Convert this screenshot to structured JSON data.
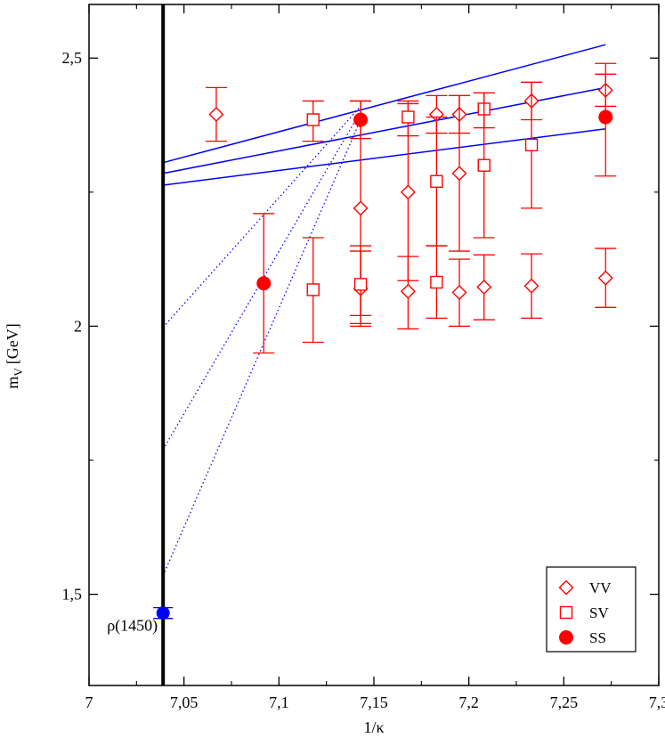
{
  "chart_data": {
    "type": "scatter",
    "xlabel": "1/κ",
    "ylabel": "m_V [GeV]",
    "ylabel_main": "m",
    "ylabel_sub": "V",
    "ylabel_unit": "[GeV]",
    "xlim": [
      7.0,
      7.3
    ],
    "ylim": [
      1.33,
      2.6
    ],
    "x_ticks": [
      7.0,
      7.05,
      7.1,
      7.15,
      7.2,
      7.25,
      7.3
    ],
    "x_tick_labels": [
      "7",
      "7,05",
      "7,1",
      "7,15",
      "7,2",
      "7,25",
      "7,3"
    ],
    "y_ticks": [
      1.5,
      2.0,
      2.5
    ],
    "y_tick_labels": [
      "1,5",
      "2",
      "2,5"
    ],
    "grid": false,
    "legend_position": "bottom-right",
    "chiral_line_x": 7.039,
    "series": [
      {
        "name": "VV",
        "marker": "diamond",
        "color": "#ff0000",
        "points": [
          {
            "x": 7.067,
            "y": 2.395,
            "lo": 2.345,
            "hi": 2.445
          },
          {
            "x": 7.143,
            "y": 2.22,
            "lo": 2.02,
            "hi": 2.42
          },
          {
            "x": 7.143,
            "y": 2.07,
            "lo": 2.0,
            "hi": 2.14
          },
          {
            "x": 7.168,
            "y": 2.25,
            "lo": 2.085,
            "hi": 2.415
          },
          {
            "x": 7.168,
            "y": 2.065,
            "lo": 1.995,
            "hi": 2.13
          },
          {
            "x": 7.183,
            "y": 2.395,
            "lo": 2.36,
            "hi": 2.43
          },
          {
            "x": 7.195,
            "y": 2.395,
            "lo": 2.36,
            "hi": 2.43
          },
          {
            "x": 7.195,
            "y": 2.285,
            "lo": 2.14,
            "hi": 2.43
          },
          {
            "x": 7.195,
            "y": 2.063,
            "lo": 2.0,
            "hi": 2.125
          },
          {
            "x": 7.208,
            "y": 2.073,
            "lo": 2.012,
            "hi": 2.133
          },
          {
            "x": 7.233,
            "y": 2.42,
            "lo": 2.385,
            "hi": 2.455
          },
          {
            "x": 7.233,
            "y": 2.075,
            "lo": 2.015,
            "hi": 2.135
          },
          {
            "x": 7.272,
            "y": 2.44,
            "lo": 2.41,
            "hi": 2.47
          },
          {
            "x": 7.272,
            "y": 2.09,
            "lo": 2.035,
            "hi": 2.145
          }
        ]
      },
      {
        "name": "SV",
        "marker": "square",
        "color": "#ff0000",
        "points": [
          {
            "x": 7.118,
            "y": 2.385,
            "lo": 2.345,
            "hi": 2.42
          },
          {
            "x": 7.118,
            "y": 2.068,
            "lo": 1.97,
            "hi": 2.165
          },
          {
            "x": 7.143,
            "y": 2.078,
            "lo": 2.005,
            "hi": 2.15
          },
          {
            "x": 7.168,
            "y": 2.39,
            "lo": 2.355,
            "hi": 2.42
          },
          {
            "x": 7.183,
            "y": 2.27,
            "lo": 2.15,
            "hi": 2.39
          },
          {
            "x": 7.183,
            "y": 2.082,
            "lo": 2.015,
            "hi": 2.15
          },
          {
            "x": 7.208,
            "y": 2.405,
            "lo": 2.37,
            "hi": 2.435
          },
          {
            "x": 7.208,
            "y": 2.3,
            "lo": 2.165,
            "hi": 2.435
          },
          {
            "x": 7.233,
            "y": 2.338,
            "lo": 2.22,
            "hi": 2.455
          }
        ]
      },
      {
        "name": "SS",
        "marker": "circle",
        "color": "#ff0000",
        "points": [
          {
            "x": 7.092,
            "y": 2.08,
            "lo": 1.95,
            "hi": 2.21
          },
          {
            "x": 7.143,
            "y": 2.385,
            "lo": 2.35,
            "hi": 2.42
          },
          {
            "x": 7.272,
            "y": 2.39,
            "lo": 2.28,
            "hi": 2.49
          }
        ]
      }
    ],
    "fit_lines": [
      {
        "x0": 7.039,
        "y0": 2.305,
        "x1": 7.272,
        "y1": 2.525
      },
      {
        "x0": 7.039,
        "y0": 2.285,
        "x1": 7.272,
        "y1": 2.445
      },
      {
        "x0": 7.039,
        "y0": 2.263,
        "x1": 7.272,
        "y1": 2.368
      }
    ],
    "extrapolation_lines": [
      {
        "x0": 7.039,
        "y0": 1.998,
        "x1": 7.143,
        "y1": 2.41
      },
      {
        "x0": 7.039,
        "y0": 1.77,
        "x1": 7.143,
        "y1": 2.4
      },
      {
        "x0": 7.039,
        "y0": 1.535,
        "x1": 7.143,
        "y1": 2.385
      }
    ],
    "reference_point": {
      "label": "ρ(1450)",
      "x": 7.039,
      "y": 1.465,
      "lo": 1.455,
      "hi": 1.475,
      "color": "#0000ff"
    },
    "fit_color": "#0000ff",
    "axis_color": "#000000"
  }
}
